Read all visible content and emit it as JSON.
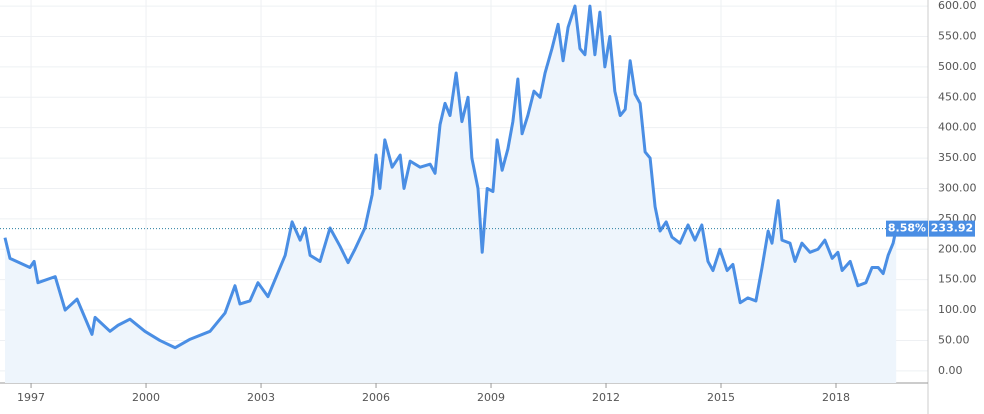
{
  "chart_data": {
    "type": "line",
    "x": [
      1996.32,
      1996.45,
      1996.97,
      1997.08,
      1997.18,
      1997.63,
      1997.89,
      1998.2,
      1998.59,
      1998.67,
      1999.06,
      1999.27,
      1999.58,
      1999.97,
      2000.36,
      2000.76,
      2001.15,
      2001.67,
      2002.06,
      2002.32,
      2002.45,
      2002.71,
      2002.92,
      2003.18,
      2003.63,
      2003.81,
      2004.02,
      2004.15,
      2004.28,
      2004.54,
      2004.8,
      2005.06,
      2005.27,
      2005.45,
      2005.71,
      2005.9,
      2006.0,
      2006.1,
      2006.23,
      2006.42,
      2006.63,
      2006.73,
      2006.89,
      2007.15,
      2007.41,
      2007.54,
      2007.67,
      2007.8,
      2007.93,
      2008.09,
      2008.24,
      2008.4,
      2008.5,
      2008.66,
      2008.77,
      2008.9,
      2009.05,
      2009.16,
      2009.29,
      2009.44,
      2009.57,
      2009.7,
      2009.81,
      2009.96,
      2010.12,
      2010.28,
      2010.41,
      2010.59,
      2010.75,
      2010.88,
      2011.01,
      2011.19,
      2011.32,
      2011.45,
      2011.58,
      2011.71,
      2011.84,
      2011.97,
      2012.1,
      2012.23,
      2012.37,
      2012.5,
      2012.63,
      2012.76,
      2012.89,
      2013.02,
      2013.15,
      2013.28,
      2013.41,
      2013.57,
      2013.72,
      2013.93,
      2014.14,
      2014.32,
      2014.5,
      2014.66,
      2014.79,
      2014.97,
      2015.16,
      2015.31,
      2015.5,
      2015.7,
      2015.91,
      2016.07,
      2016.23,
      2016.33,
      2016.49,
      2016.59,
      2016.8,
      2016.93,
      2017.11,
      2017.32,
      2017.53,
      2017.71,
      2017.9,
      2018.05,
      2018.16,
      2018.37,
      2018.57,
      2018.78,
      2018.94,
      2019.1,
      2019.23,
      2019.36,
      2019.49,
      2019.57
    ],
    "series": [
      {
        "color": "#4a8ee4",
        "values": [
          219,
          185,
          170,
          180,
          145,
          155,
          100,
          118,
          60,
          88,
          65,
          75,
          85,
          65,
          50,
          38,
          52,
          65,
          95,
          140,
          110,
          115,
          145,
          122,
          190,
          245,
          215,
          235,
          190,
          180,
          235,
          205,
          178,
          200,
          235,
          290,
          355,
          300,
          380,
          335,
          355,
          300,
          345,
          335,
          340,
          325,
          405,
          440,
          420,
          490,
          410,
          450,
          350,
          300,
          195,
          300,
          295,
          380,
          330,
          365,
          410,
          480,
          390,
          420,
          460,
          450,
          490,
          530,
          570,
          510,
          565,
          600,
          530,
          520,
          600,
          520,
          590,
          500,
          550,
          460,
          420,
          430,
          510,
          455,
          440,
          360,
          350,
          270,
          230,
          245,
          220,
          210,
          240,
          215,
          240,
          180,
          165,
          200,
          165,
          175,
          112,
          120,
          115,
          170,
          230,
          210,
          280,
          215,
          210,
          180,
          210,
          195,
          200,
          215,
          185,
          195,
          165,
          180,
          140,
          145,
          170,
          170,
          160,
          190,
          210,
          233.92
        ]
      }
    ],
    "xlim": [
      1996.19,
      2020.4
    ],
    "xticks": [
      1997,
      2000,
      2003,
      2006,
      2009,
      2012,
      2015,
      2018
    ],
    "ylim": [
      -20,
      610
    ],
    "yticks": [
      {
        "value": 0,
        "label": "0.00"
      },
      {
        "value": 50,
        "label": "50.00"
      },
      {
        "value": 100,
        "label": "100.00"
      },
      {
        "value": 150,
        "label": "150.00"
      },
      {
        "value": 200,
        "label": "200.00"
      },
      {
        "value": 250,
        "label": "250.00"
      },
      {
        "value": 300,
        "label": "300.00"
      },
      {
        "value": 350,
        "label": "350.00"
      },
      {
        "value": 400,
        "label": "400.00"
      },
      {
        "value": 450,
        "label": "450.00"
      },
      {
        "value": 500,
        "label": "500.00"
      },
      {
        "value": 550,
        "label": "550.00"
      },
      {
        "value": 600,
        "label": "600.00"
      }
    ],
    "grid": true,
    "fill": "#eef5fc",
    "last_value": 233.92,
    "change": {
      "value": 8.58,
      "label": "8.58%"
    }
  }
}
